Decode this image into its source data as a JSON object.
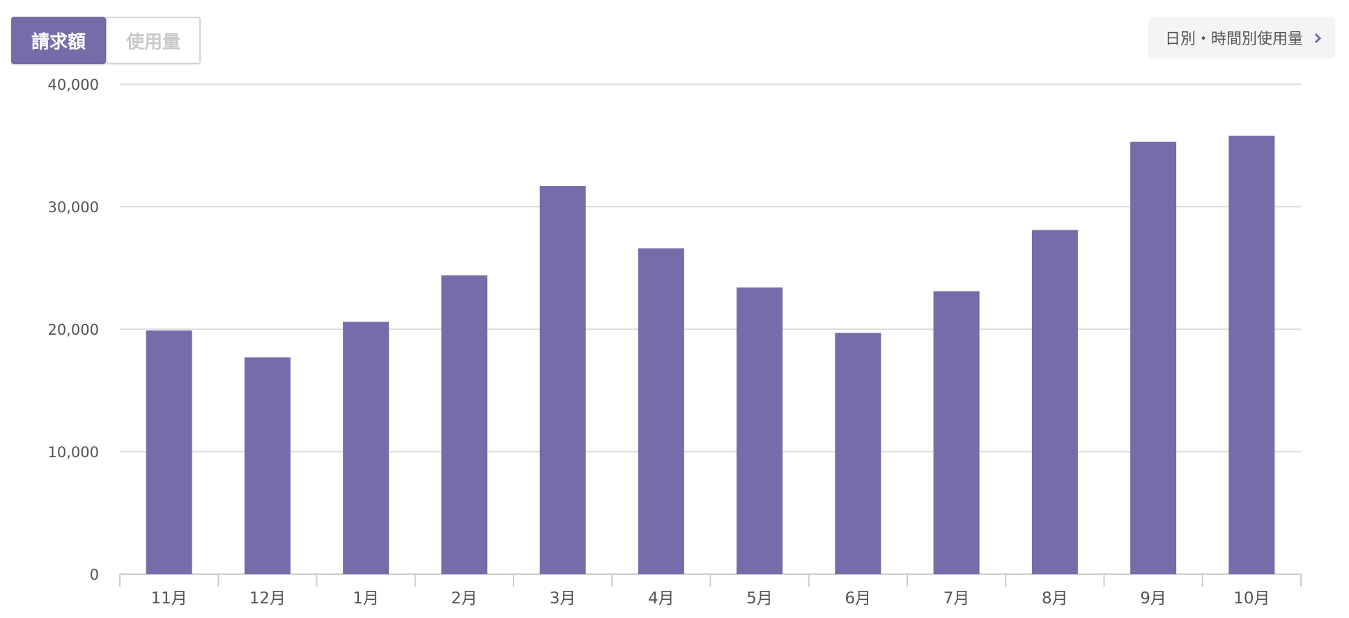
{
  "tabs": [
    {
      "label": "請求額",
      "active": true
    },
    {
      "label": "使用量",
      "active": false
    }
  ],
  "detail_link": {
    "label": "日別・時間別使用量",
    "icon": "chevron-right-icon"
  },
  "colors": {
    "bar": "#766ca9",
    "grid": "#dddddd",
    "axis": "#cccccc",
    "text": "#555555"
  },
  "chart_data": {
    "type": "bar",
    "title": "",
    "xlabel": "",
    "ylabel": "",
    "categories": [
      "11月",
      "12月",
      "1月",
      "2月",
      "3月",
      "4月",
      "5月",
      "6月",
      "7月",
      "8月",
      "9月",
      "10月"
    ],
    "values": [
      19900,
      17700,
      20600,
      24400,
      31700,
      26600,
      23400,
      19700,
      23100,
      28100,
      35300,
      35800
    ],
    "ylim": [
      0,
      40000
    ],
    "yticks": [
      0,
      10000,
      20000,
      30000,
      40000
    ],
    "ytick_labels": [
      "0",
      "10,000",
      "20,000",
      "30,000",
      "40,000"
    ],
    "grid": true,
    "legend": "none"
  }
}
